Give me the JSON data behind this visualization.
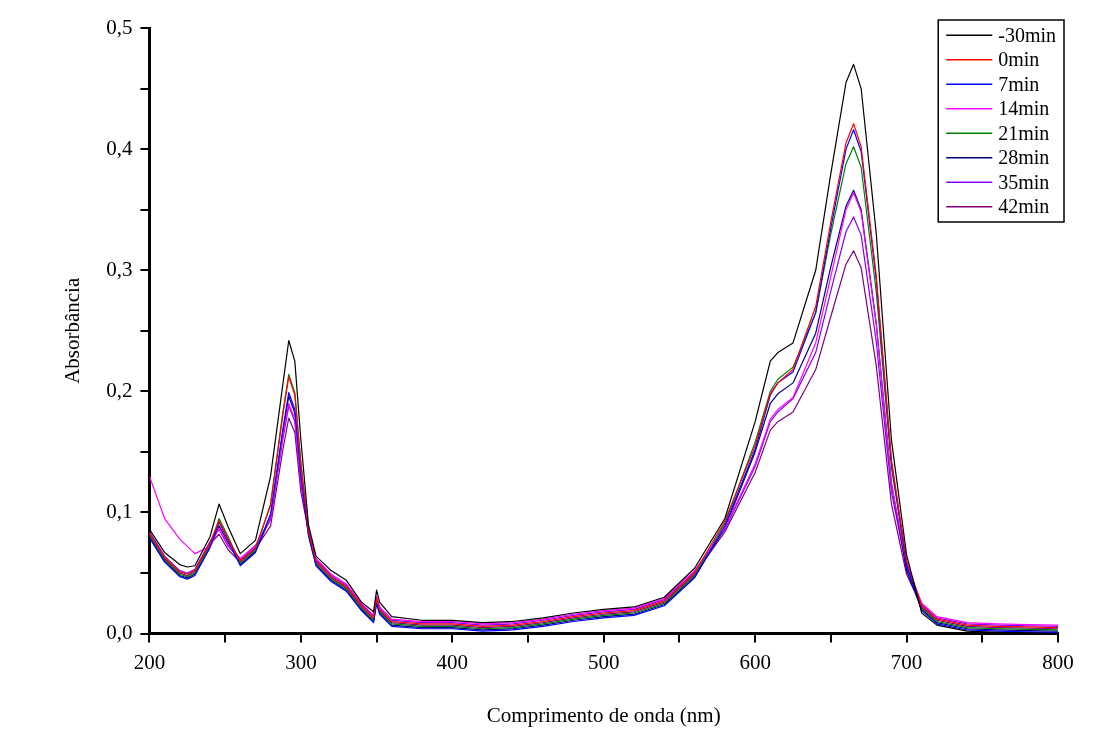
{
  "chart_data": {
    "type": "line",
    "xlabel": "Comprimento de onda (nm)",
    "ylabel": "Absorbância",
    "x": [
      200,
      210,
      220,
      225,
      230,
      240,
      246,
      252,
      260,
      270,
      280,
      288,
      292,
      296,
      300,
      305,
      310,
      320,
      330,
      340,
      348,
      350,
      352,
      360,
      380,
      400,
      420,
      440,
      460,
      480,
      500,
      520,
      540,
      560,
      580,
      600,
      610,
      615,
      625,
      640,
      650,
      660,
      665,
      670,
      680,
      690,
      700,
      710,
      720,
      740,
      760,
      800
    ],
    "xlim": [
      200,
      800
    ],
    "ylim": [
      0,
      0.5
    ],
    "xticks": [
      200,
      {
        "value": 250,
        "label": null
      },
      300,
      {
        "value": 350,
        "label": null
      },
      400,
      {
        "value": 450,
        "label": null
      },
      500,
      {
        "value": 550,
        "label": null
      },
      600,
      {
        "value": 650,
        "label": null
      },
      700,
      {
        "value": 750,
        "label": null
      },
      800
    ],
    "yticks": [
      {
        "value": 0,
        "label": "0,0"
      },
      {
        "value": 0.05,
        "label": null
      },
      {
        "value": 0.1,
        "label": "0,1"
      },
      {
        "value": 0.15,
        "label": null
      },
      {
        "value": 0.2,
        "label": "0,2"
      },
      {
        "value": 0.25,
        "label": null
      },
      {
        "value": 0.3,
        "label": "0,3"
      },
      {
        "value": 0.35,
        "label": null
      },
      {
        "value": 0.4,
        "label": "0,4"
      },
      {
        "value": 0.45,
        "label": null
      },
      {
        "value": 0.5,
        "label": "0,5"
      }
    ],
    "grid": false,
    "legend": "top right",
    "series": [
      {
        "name": "-30min",
        "color": "#000000",
        "values": [
          0.086,
          0.067,
          0.057,
          0.055,
          0.056,
          0.08,
          0.107,
          0.088,
          0.066,
          0.077,
          0.13,
          0.205,
          0.242,
          0.225,
          0.16,
          0.09,
          0.064,
          0.052,
          0.044,
          0.026,
          0.018,
          0.036,
          0.026,
          0.014,
          0.011,
          0.011,
          0.009,
          0.01,
          0.013,
          0.017,
          0.02,
          0.022,
          0.03,
          0.054,
          0.095,
          0.175,
          0.225,
          0.232,
          0.24,
          0.3,
          0.38,
          0.455,
          0.47,
          0.45,
          0.33,
          0.16,
          0.065,
          0.017,
          0.007,
          0.002,
          0.001,
          0
        ]
      },
      {
        "name": "0min",
        "color": "#ff0000",
        "values": [
          0.083,
          0.063,
          0.051,
          0.049,
          0.052,
          0.075,
          0.093,
          0.078,
          0.06,
          0.071,
          0.106,
          0.18,
          0.212,
          0.197,
          0.14,
          0.085,
          0.06,
          0.047,
          0.039,
          0.023,
          0.013,
          0.029,
          0.02,
          0.01,
          0.008,
          0.008,
          0.006,
          0.007,
          0.01,
          0.014,
          0.017,
          0.019,
          0.027,
          0.05,
          0.093,
          0.155,
          0.198,
          0.207,
          0.218,
          0.27,
          0.34,
          0.405,
          0.421,
          0.402,
          0.295,
          0.143,
          0.06,
          0.023,
          0.012,
          0.007,
          0.006,
          0.005
        ]
      },
      {
        "name": "7min",
        "color": "#0000ff",
        "values": [
          0.079,
          0.059,
          0.047,
          0.045,
          0.048,
          0.071,
          0.092,
          0.077,
          0.056,
          0.067,
          0.099,
          0.168,
          0.199,
          0.185,
          0.131,
          0.081,
          0.056,
          0.043,
          0.035,
          0.019,
          0.009,
          0.025,
          0.016,
          0.006,
          0.004,
          0.004,
          0.002,
          0.003,
          0.006,
          0.01,
          0.013,
          0.015,
          0.023,
          0.046,
          0.089,
          0.152,
          0.197,
          0.207,
          0.216,
          0.265,
          0.335,
          0.4,
          0.416,
          0.398,
          0.292,
          0.142,
          0.056,
          0.019,
          0.008,
          0.003,
          0.002,
          0.001
        ]
      },
      {
        "name": "14min",
        "color": "#ff00ff",
        "values": [
          0.13,
          0.095,
          0.078,
          0.072,
          0.066,
          0.072,
          0.087,
          0.073,
          0.062,
          0.073,
          0.095,
          0.162,
          0.19,
          0.177,
          0.125,
          0.087,
          0.062,
          0.049,
          0.041,
          0.025,
          0.015,
          0.031,
          0.022,
          0.012,
          0.01,
          0.01,
          0.008,
          0.009,
          0.012,
          0.016,
          0.019,
          0.021,
          0.029,
          0.052,
          0.087,
          0.14,
          0.177,
          0.185,
          0.195,
          0.24,
          0.295,
          0.35,
          0.364,
          0.348,
          0.255,
          0.124,
          0.057,
          0.025,
          0.014,
          0.009,
          0.008,
          0.007
        ]
      },
      {
        "name": "21min",
        "color": "#008000",
        "values": [
          0.081,
          0.061,
          0.049,
          0.047,
          0.05,
          0.073,
          0.095,
          0.08,
          0.058,
          0.069,
          0.107,
          0.182,
          0.214,
          0.199,
          0.141,
          0.083,
          0.058,
          0.045,
          0.037,
          0.021,
          0.011,
          0.027,
          0.018,
          0.008,
          0.006,
          0.006,
          0.004,
          0.005,
          0.008,
          0.012,
          0.015,
          0.017,
          0.025,
          0.048,
          0.091,
          0.158,
          0.2,
          0.21,
          0.22,
          0.265,
          0.33,
          0.388,
          0.402,
          0.385,
          0.282,
          0.137,
          0.059,
          0.021,
          0.01,
          0.005,
          0.004,
          0.003
        ]
      },
      {
        "name": "28min",
        "color": "#000080",
        "values": [
          0.08,
          0.06,
          0.048,
          0.046,
          0.049,
          0.072,
          0.089,
          0.075,
          0.057,
          0.068,
          0.096,
          0.165,
          0.196,
          0.182,
          0.128,
          0.082,
          0.057,
          0.044,
          0.036,
          0.02,
          0.01,
          0.026,
          0.017,
          0.007,
          0.005,
          0.005,
          0.003,
          0.004,
          0.007,
          0.011,
          0.014,
          0.016,
          0.024,
          0.047,
          0.087,
          0.15,
          0.19,
          0.198,
          0.207,
          0.248,
          0.303,
          0.353,
          0.366,
          0.35,
          0.256,
          0.124,
          0.052,
          0.02,
          0.009,
          0.004,
          0.003,
          0.002
        ]
      },
      {
        "name": "35min",
        "color": "#8000ff",
        "values": [
          0.084,
          0.064,
          0.052,
          0.05,
          0.053,
          0.076,
          0.086,
          0.072,
          0.061,
          0.072,
          0.094,
          0.16,
          0.188,
          0.175,
          0.124,
          0.086,
          0.061,
          0.048,
          0.04,
          0.024,
          0.014,
          0.03,
          0.021,
          0.011,
          0.009,
          0.009,
          0.007,
          0.008,
          0.011,
          0.015,
          0.018,
          0.02,
          0.028,
          0.051,
          0.086,
          0.138,
          0.175,
          0.183,
          0.194,
          0.232,
          0.283,
          0.332,
          0.344,
          0.329,
          0.241,
          0.117,
          0.054,
          0.024,
          0.013,
          0.008,
          0.007,
          0.006
        ]
      },
      {
        "name": "42min",
        "color": "#800080",
        "values": [
          0.082,
          0.062,
          0.05,
          0.048,
          0.051,
          0.074,
          0.082,
          0.069,
          0.059,
          0.07,
          0.089,
          0.151,
          0.178,
          0.166,
          0.117,
          0.084,
          0.059,
          0.046,
          0.038,
          0.022,
          0.012,
          0.028,
          0.019,
          0.009,
          0.007,
          0.007,
          0.005,
          0.006,
          0.009,
          0.013,
          0.016,
          0.018,
          0.026,
          0.049,
          0.084,
          0.133,
          0.168,
          0.175,
          0.183,
          0.218,
          0.262,
          0.305,
          0.316,
          0.302,
          0.221,
          0.107,
          0.049,
          0.022,
          0.011,
          0.006,
          0.005,
          0.004
        ]
      }
    ]
  }
}
